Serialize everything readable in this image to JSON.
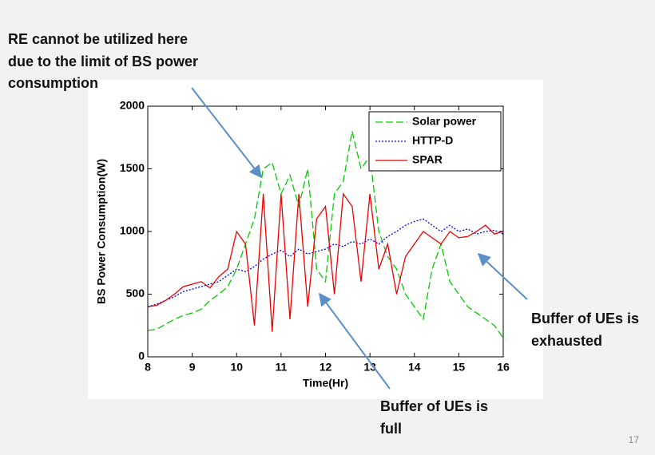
{
  "chart_data": {
    "type": "line",
    "xlabel": "Time(Hr)",
    "ylabel": "BS Power Consumption(W)",
    "x": [
      8,
      8.2,
      8.4,
      8.6,
      8.8,
      9,
      9.2,
      9.4,
      9.6,
      9.8,
      10,
      10.2,
      10.4,
      10.6,
      10.8,
      11,
      11.2,
      11.4,
      11.6,
      11.8,
      12,
      12.2,
      12.4,
      12.6,
      12.8,
      13,
      13.2,
      13.4,
      13.6,
      13.8,
      14,
      14.2,
      14.4,
      14.6,
      14.8,
      15,
      15.2,
      15.4,
      15.6,
      15.8,
      16
    ],
    "series": [
      {
        "name": "Solar power",
        "color": "#00cc00",
        "linestyle": "dashed",
        "values": [
          210,
          220,
          260,
          300,
          330,
          350,
          380,
          450,
          500,
          560,
          700,
          900,
          1100,
          1500,
          1550,
          1300,
          1450,
          1200,
          1500,
          700,
          600,
          1300,
          1400,
          1800,
          1500,
          1600,
          1000,
          800,
          700,
          500,
          400,
          300,
          700,
          900,
          600,
          500,
          400,
          350,
          300,
          250,
          150
        ]
      },
      {
        "name": "HTTP-D",
        "color": "#0000ee",
        "linestyle": "dotted",
        "values": [
          400,
          420,
          450,
          480,
          520,
          540,
          560,
          580,
          600,
          650,
          700,
          680,
          720,
          780,
          820,
          850,
          800,
          860,
          820,
          840,
          860,
          900,
          880,
          920,
          900,
          940,
          900,
          960,
          1000,
          1050,
          1080,
          1100,
          1050,
          1000,
          1050,
          1000,
          1020,
          980,
          1000,
          1010,
          980
        ]
      },
      {
        "name": "SPAR",
        "color": "#ee0000",
        "linestyle": "solid",
        "values": [
          400,
          410,
          450,
          500,
          560,
          580,
          600,
          550,
          640,
          700,
          1000,
          900,
          250,
          1300,
          200,
          1300,
          300,
          1300,
          400,
          1100,
          1200,
          500,
          1300,
          1200,
          600,
          1300,
          700,
          900,
          500,
          800,
          900,
          1000,
          950,
          900,
          1000,
          950,
          960,
          1000,
          1050,
          980,
          1000
        ]
      }
    ],
    "xlim": [
      8,
      16
    ],
    "xticks": [
      8,
      9,
      10,
      11,
      12,
      13,
      14,
      15,
      16
    ],
    "ylim": [
      0,
      2000
    ],
    "yticks": [
      0,
      500,
      1000,
      1500,
      2000
    ],
    "legend": "upper right"
  },
  "annotations": [
    {
      "lines": [
        "RE cannot be utilized here",
        "due to the limit of BS power",
        "consumption"
      ]
    },
    {
      "lines": [
        "Buffer of UEs is",
        "exhausted"
      ]
    },
    {
      "lines": [
        "Buffer of UEs is",
        "full"
      ]
    }
  ],
  "page_number": "17"
}
